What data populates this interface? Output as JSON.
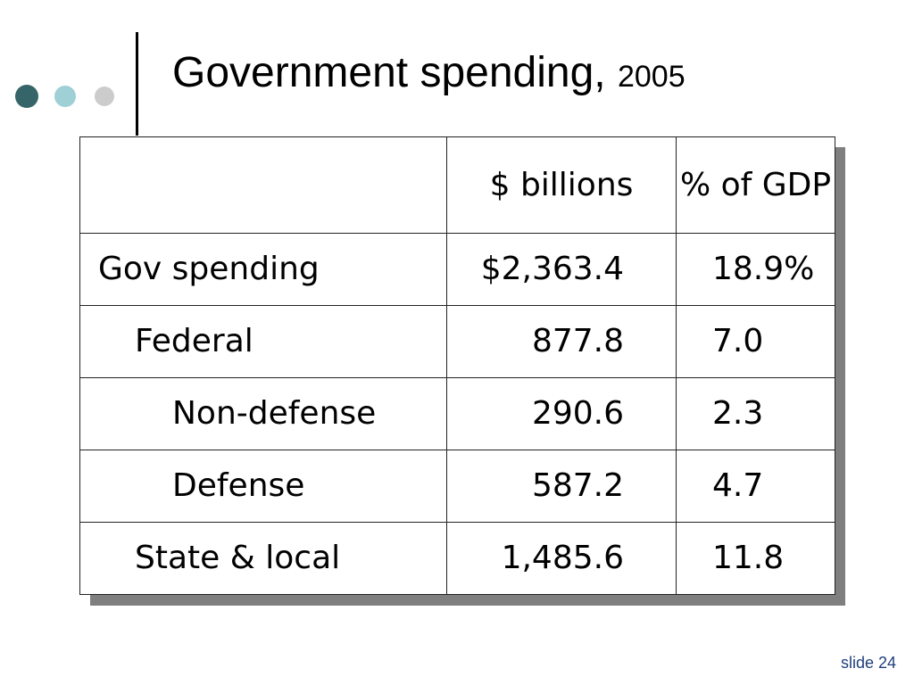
{
  "colors": {
    "dot_dark": "#356469",
    "dot_mid": "#9fd0d5",
    "dot_light": "#cccccc",
    "slide_number": "#1f3e7d"
  },
  "title": {
    "main": "Government spending, ",
    "year": "2005"
  },
  "table": {
    "headers": [
      "",
      "$ billions",
      "% of GDP"
    ],
    "rows": [
      {
        "label": "Gov spending",
        "billions": "$2,363.4",
        "pct_gdp": "18.9%"
      },
      {
        "label": "Federal",
        "billions": "877.8",
        "pct_gdp": "7.0"
      },
      {
        "label": "Non-defense",
        "billions": "290.6",
        "pct_gdp": "2.3"
      },
      {
        "label": "Defense",
        "billions": "587.2",
        "pct_gdp": "4.7"
      },
      {
        "label": "State & local",
        "billions": "1,485.6",
        "pct_gdp": "11.8"
      }
    ]
  },
  "footer": {
    "slide_number": "slide 24"
  }
}
